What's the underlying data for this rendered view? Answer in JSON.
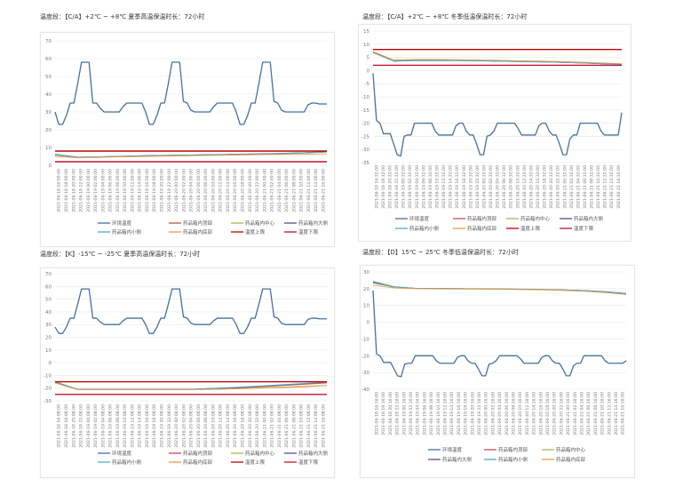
{
  "chart_data": [
    {
      "type": "line",
      "title": "温度段：【C/A】+2℃ ~ +8℃  夏季高温保温时长：72小时",
      "ylim": [
        0,
        70
      ],
      "ystep": 10,
      "grid": true,
      "legend": "bottom",
      "x_labels": [
        "2021-06-18 16:00:00",
        "2021-06-18 18:00:00",
        "2021-06-18 20:00:00",
        "2021-06-18 22:00:00",
        "2021-06-19 00:00:00",
        "2021-06-19 02:00:00",
        "2021-06-19 04:00:00",
        "2021-06-19 06:00:00",
        "2021-06-19 08:00:00",
        "2021-06-19 10:00:00",
        "2021-06-19 12:00:00",
        "2021-06-19 14:00:00",
        "2021-06-19 16:00:00",
        "2021-06-19 18:00:00",
        "2021-06-19 20:00:00",
        "2021-06-19 22:00:00",
        "2021-06-20 00:00:00",
        "2021-06-20 02:00:00",
        "2021-06-20 04:00:00",
        "2021-06-20 06:00:00",
        "2021-06-20 08:00:00",
        "2021-06-20 10:00:00",
        "2021-06-20 12:00:00",
        "2021-06-20 14:00:00",
        "2021-06-20 16:00:00",
        "2021-06-20 18:00:00",
        "2021-06-20 20:00:00",
        "2021-06-20 22:00:00",
        "2021-06-21 00:00:00",
        "2021-06-21 02:00:00",
        "2021-06-21 04:00:00",
        "2021-06-21 06:00:00",
        "2021-06-21 08:00:00",
        "2021-06-21 10:00:00",
        "2021-06-21 12:00:00",
        "2021-06-21 14:00:00",
        "2021-06-21 16:00:00"
      ],
      "series": [
        {
          "name": "环境温度",
          "color": "#44709d",
          "values": [
            30,
            23,
            23,
            28,
            35,
            35,
            46,
            58,
            58,
            58,
            35,
            35,
            32,
            30,
            30,
            30,
            30,
            30,
            33,
            35,
            35,
            35,
            35,
            35,
            30,
            23,
            23,
            28,
            35,
            35,
            46,
            58,
            58,
            58,
            36,
            35,
            31,
            30,
            30,
            30,
            30,
            30,
            33,
            35,
            35,
            35,
            35,
            35,
            30,
            23,
            23,
            28,
            35,
            35,
            46,
            58,
            58,
            58,
            36,
            35,
            31,
            30,
            30,
            30,
            30,
            30,
            30,
            34,
            35,
            35,
            34.5,
            34.5,
            34.5
          ]
        },
        {
          "name": "药品箱内顶部",
          "color": "#c0504d",
          "values": [
            6,
            4.5,
            4.8,
            5.1,
            5.4,
            5.6,
            5.8,
            6,
            6.2,
            6.4,
            6.6,
            7,
            7.6
          ]
        },
        {
          "name": "药品箱内中心",
          "color": "#9bbb59",
          "values": [
            5.8,
            4.4,
            4.7,
            5,
            5.3,
            5.5,
            5.7,
            5.9,
            6.1,
            6.3,
            6.5,
            6.9,
            7.4
          ]
        },
        {
          "name": "药品箱内大侧",
          "color": "#5b4f8c",
          "values": [
            6.2,
            4.5,
            4.8,
            5.1,
            5.4,
            5.6,
            5.8,
            6,
            6.2,
            6.4,
            6.7,
            7.1,
            7.7
          ]
        },
        {
          "name": "药品箱内小侧",
          "color": "#4bacc6",
          "values": [
            6,
            4.4,
            4.7,
            5,
            5.3,
            5.5,
            5.7,
            5.9,
            6.1,
            6.3,
            6.6,
            7,
            7.5
          ]
        },
        {
          "name": "药品箱内底部",
          "color": "#f79646",
          "values": [
            5,
            4.2,
            4.5,
            4.8,
            5,
            5.2,
            5.4,
            5.6,
            5.8,
            6,
            6.1,
            6.2,
            6.4
          ]
        },
        {
          "name": "温度上限",
          "color": "#c00000",
          "values": [
            8,
            8
          ]
        },
        {
          "name": "温度下限",
          "color": "#c0142c",
          "values": [
            2,
            2
          ]
        }
      ]
    },
    {
      "type": "line",
      "title": "温度段：【C/A】+2℃ ~ +8℃  冬季低温保温时长：72小时",
      "ylim": [
        -35,
        15
      ],
      "ystep": 5,
      "grid": true,
      "legend": "bottom",
      "x_labels": [
        "2021-06-18 16:32:00",
        "2021-06-18 18:32:00",
        "2021-06-18 20:32:00",
        "2021-06-18 22:32:00",
        "2021-06-19 00:32:00",
        "2021-06-19 02:32:00",
        "2021-06-19 04:32:00",
        "2021-06-19 06:32:00",
        "2021-06-19 08:32:00",
        "2021-06-19 10:32:00",
        "2021-06-19 12:32:00",
        "2021-06-19 14:32:00",
        "2021-06-19 16:32:00",
        "2021-06-19 18:32:00",
        "2021-06-19 20:32:00",
        "2021-06-19 22:32:00",
        "2021-06-20 00:32:00",
        "2021-06-20 02:32:00",
        "2021-06-20 04:32:00",
        "2021-06-20 06:32:00",
        "2021-06-20 08:32:00",
        "2021-06-20 10:32:00",
        "2021-06-20 12:32:00",
        "2021-06-20 14:32:00",
        "2021-06-20 16:32:00",
        "2021-06-20 18:32:00",
        "2021-06-20 20:32:00",
        "2021-06-20 22:32:00",
        "2021-06-21 00:32:00",
        "2021-06-21 02:32:00",
        "2021-06-21 04:32:00",
        "2021-06-21 06:32:00",
        "2021-06-21 08:32:00",
        "2021-06-21 10:32:00",
        "2021-06-21 12:32:00",
        "2021-06-21 14:32:00",
        "2021-06-21 16:32:00"
      ],
      "series": [
        {
          "name": "环境温度",
          "color": "#44709d",
          "values": [
            -1,
            -19,
            -20,
            -24,
            -24,
            -24,
            -28,
            -32,
            -32.5,
            -25,
            -24.5,
            -24.5,
            -20,
            -20,
            -20,
            -20,
            -20,
            -20,
            -23,
            -24.5,
            -24.5,
            -24.5,
            -24.5,
            -24.5,
            -21,
            -20,
            -20,
            -23,
            -24.5,
            -24.5,
            -28,
            -32,
            -32,
            -25,
            -24.5,
            -23,
            -20,
            -20,
            -20,
            -20,
            -20,
            -20,
            -22,
            -24.5,
            -24.5,
            -24.5,
            -24.5,
            -24.5,
            -21,
            -20,
            -20,
            -23,
            -24.5,
            -24.5,
            -28,
            -32,
            -32,
            -26,
            -24.5,
            -24.5,
            -20,
            -20,
            -20,
            -20,
            -20,
            -20,
            -23,
            -24.5,
            -24.5,
            -24.5,
            -24.5,
            -24.5,
            -16
          ]
        },
        {
          "name": "药品箱内顶部",
          "color": "#c0504d",
          "values": [
            7,
            3.8,
            4,
            4,
            4,
            3.9,
            3.8,
            3.6,
            3.5,
            3.3,
            3.1,
            2.8,
            2.5
          ]
        },
        {
          "name": "药品箱内中心",
          "color": "#9bbb59",
          "values": [
            6.8,
            3.7,
            3.9,
            3.9,
            3.9,
            3.8,
            3.7,
            3.5,
            3.4,
            3.2,
            3,
            2.7,
            2.4
          ]
        },
        {
          "name": "药品箱内大侧",
          "color": "#5b4f8c",
          "values": [
            7,
            3.6,
            3.8,
            3.8,
            3.8,
            3.7,
            3.6,
            3.4,
            3.3,
            3.1,
            2.9,
            2.6,
            2.4
          ]
        },
        {
          "name": "药品箱内小侧",
          "color": "#4bacc6",
          "values": [
            6.9,
            3.6,
            3.8,
            3.8,
            3.8,
            3.7,
            3.6,
            3.4,
            3.3,
            3.1,
            2.9,
            2.6,
            2.3
          ]
        },
        {
          "name": "药品箱内底部",
          "color": "#f79646",
          "values": [
            7.2,
            4,
            4.2,
            4.2,
            4.1,
            4,
            3.9,
            3.7,
            3.6,
            3.4,
            3.2,
            2.9,
            2.6
          ]
        },
        {
          "name": "温度上限",
          "color": "#c00000",
          "values": [
            8,
            8
          ]
        },
        {
          "name": "温度下限",
          "color": "#c0142c",
          "values": [
            2,
            2
          ]
        }
      ]
    },
    {
      "type": "line",
      "title": "温度段：【K】-15℃ ~ -25℃  夏季高温保温时长：72小时",
      "ylim": [
        -30,
        70
      ],
      "ystep": 10,
      "grid": true,
      "legend": "bottom",
      "x_labels": [
        "2021-06-18 16:08:00",
        "2021-06-18 18:08:00",
        "2021-06-18 20:08:00",
        "2021-06-18 22:08:00",
        "2021-06-19 00:08:00",
        "2021-06-19 02:08:00",
        "2021-06-19 04:08:00",
        "2021-06-19 06:08:00",
        "2021-06-19 08:08:00",
        "2021-06-19 10:08:00",
        "2021-06-19 12:08:00",
        "2021-06-19 14:08:00",
        "2021-06-19 16:08:00",
        "2021-06-19 18:08:00",
        "2021-06-19 20:08:00",
        "2021-06-19 22:08:00",
        "2021-06-20 00:08:00",
        "2021-06-20 02:08:00",
        "2021-06-20 04:08:00",
        "2021-06-20 06:08:00",
        "2021-06-20 08:08:00",
        "2021-06-20 10:08:00",
        "2021-06-20 12:08:00",
        "2021-06-20 14:08:00",
        "2021-06-20 16:08:00",
        "2021-06-20 18:08:00",
        "2021-06-20 20:08:00",
        "2021-06-20 22:08:00",
        "2021-06-21 00:08:00",
        "2021-06-21 02:08:00",
        "2021-06-21 04:08:00",
        "2021-06-21 06:08:00",
        "2021-06-21 08:08:00",
        "2021-06-21 10:08:00",
        "2021-06-21 12:08:00",
        "2021-06-21 14:08:00",
        "2021-06-21 16:08:00"
      ],
      "series": [
        {
          "name": "环境温度",
          "color": "#44709d",
          "values": [
            28,
            23,
            23,
            28,
            35,
            35,
            46,
            58,
            58,
            58,
            35,
            35,
            32,
            30,
            30,
            30,
            30,
            30,
            33,
            35,
            35,
            35,
            35,
            35,
            30,
            23,
            23,
            28,
            35,
            35,
            46,
            58,
            58,
            58,
            36,
            35,
            31,
            30,
            30,
            30,
            30,
            30,
            33,
            35,
            35,
            35,
            35,
            35,
            30,
            23,
            23,
            28,
            35,
            35,
            46,
            58,
            58,
            58,
            36,
            35,
            31,
            30,
            30,
            30,
            30,
            30,
            30,
            34,
            35,
            35,
            34.5,
            34.5,
            34.5
          ]
        },
        {
          "name": "药品箱内顶部",
          "color": "#c0504d",
          "values": [
            -15,
            -21,
            -21,
            -21,
            -21,
            -21,
            -21,
            -20.5,
            -20,
            -19,
            -18,
            -17,
            -16
          ]
        },
        {
          "name": "药品箱内中心",
          "color": "#9bbb59",
          "values": [
            -15.5,
            -21,
            -21,
            -21,
            -21,
            -21,
            -21,
            -20.8,
            -20.4,
            -19.8,
            -19.2,
            -18.6,
            -17.8
          ]
        },
        {
          "name": "药品箱内大侧",
          "color": "#5b4f8c",
          "values": [
            -15,
            -21,
            -21,
            -21,
            -21,
            -21,
            -21,
            -20.3,
            -19.6,
            -18.6,
            -17.6,
            -16.5,
            -15.3
          ]
        },
        {
          "name": "药品箱内小侧",
          "color": "#4bacc6",
          "values": [
            -15,
            -21,
            -21,
            -21,
            -21,
            -21,
            -21,
            -20.2,
            -19.4,
            -18.4,
            -17.4,
            -16.3,
            -15.2
          ]
        },
        {
          "name": "药品箱内底部",
          "color": "#f79646",
          "values": [
            -16,
            -21.3,
            -21.3,
            -21.3,
            -21.3,
            -21.3,
            -21.3,
            -21,
            -20.6,
            -20.1,
            -19.6,
            -19,
            -18
          ]
        },
        {
          "name": "温度上限",
          "color": "#c00000",
          "values": [
            -15,
            -15
          ]
        },
        {
          "name": "温度下限",
          "color": "#c0142c",
          "values": [
            -25,
            -25
          ]
        }
      ]
    },
    {
      "type": "line",
      "title": "温度段：【D】15℃ ~ 25℃  冬季低温保温时长：72小时",
      "ylim": [
        -40,
        30
      ],
      "ystep": 10,
      "grid": true,
      "legend": "bottom",
      "x_labels": [
        "2021-06-18 16:16:00",
        "2021-06-18 18:16:00",
        "2021-06-18 20:16:00",
        "2021-06-18 22:16:00",
        "2021-06-19 00:16:00",
        "2021-06-19 02:16:00",
        "2021-06-19 04:16:00",
        "2021-06-19 06:16:00",
        "2021-06-19 08:16:00",
        "2021-06-19 10:16:00",
        "2021-06-19 12:16:00",
        "2021-06-19 14:16:00",
        "2021-06-19 16:16:00",
        "2021-06-19 18:16:00",
        "2021-06-19 20:16:00",
        "2021-06-19 22:16:00",
        "2021-06-20 00:16:00",
        "2021-06-20 02:16:00",
        "2021-06-20 04:16:00",
        "2021-06-20 06:16:00",
        "2021-06-20 08:16:00",
        "2021-06-20 10:16:00",
        "2021-06-20 12:16:00",
        "2021-06-20 14:16:00",
        "2021-06-20 16:16:00",
        "2021-06-20 18:16:00",
        "2021-06-20 20:16:00",
        "2021-06-20 22:16:00",
        "2021-06-21 00:16:00",
        "2021-06-21 02:16:00",
        "2021-06-21 04:16:00",
        "2021-06-21 06:16:00",
        "2021-06-21 08:16:00",
        "2021-06-21 10:16:00",
        "2021-06-21 12:16:00",
        "2021-06-21 14:16:00",
        "2021-06-21 16:16:00"
      ],
      "series": [
        {
          "name": "环境温度",
          "color": "#44709d",
          "values": [
            19,
            -19,
            -20,
            -24,
            -24,
            -24,
            -28,
            -32,
            -32.5,
            -25,
            -24.5,
            -24.5,
            -20,
            -20,
            -20,
            -20,
            -20,
            -20,
            -23,
            -24.5,
            -24.5,
            -24.5,
            -24.5,
            -24.5,
            -21,
            -20,
            -20,
            -23,
            -24.5,
            -24.5,
            -28,
            -32,
            -32,
            -25,
            -24.5,
            -23,
            -20,
            -20,
            -20,
            -20,
            -20,
            -20,
            -22,
            -24.5,
            -24.5,
            -24.5,
            -24.5,
            -24.5,
            -21,
            -20,
            -20,
            -23,
            -24.5,
            -24.5,
            -28,
            -32,
            -32,
            -26,
            -24.5,
            -24.5,
            -20,
            -20,
            -20,
            -20,
            -20,
            -20,
            -23,
            -24.5,
            -24.5,
            -24.5,
            -24.5,
            -24.5,
            -23
          ]
        },
        {
          "name": "药品箱内顶部",
          "color": "#c0504d",
          "values": [
            24,
            21,
            20.2,
            20.1,
            20,
            19.9,
            19.8,
            19.7,
            19.5,
            19.2,
            18.8,
            18,
            17
          ]
        },
        {
          "name": "药品箱内中心",
          "color": "#9bbb59",
          "values": [
            24.5,
            21.2,
            20.3,
            20.2,
            20.1,
            20,
            19.9,
            19.8,
            19.6,
            19.3,
            18.9,
            18.1,
            17
          ]
        },
        {
          "name": "药品箱内大侧",
          "color": "#5b4f8c",
          "values": [
            23.5,
            21,
            20.2,
            20.1,
            20,
            19.9,
            19.8,
            19.7,
            19.5,
            19.3,
            18.9,
            18.2,
            17.2
          ]
        },
        {
          "name": "药品箱内小侧",
          "color": "#4bacc6",
          "values": [
            24,
            21,
            20.2,
            20.1,
            20,
            19.9,
            19.8,
            19.7,
            19.5,
            19.2,
            18.8,
            18,
            17
          ]
        },
        {
          "name": "药品箱内底部",
          "color": "#f79646",
          "values": [
            22,
            20.5,
            20,
            19.9,
            19.8,
            19.7,
            19.6,
            19.5,
            19.3,
            19,
            18.5,
            17.7,
            16.5
          ]
        }
      ]
    }
  ]
}
